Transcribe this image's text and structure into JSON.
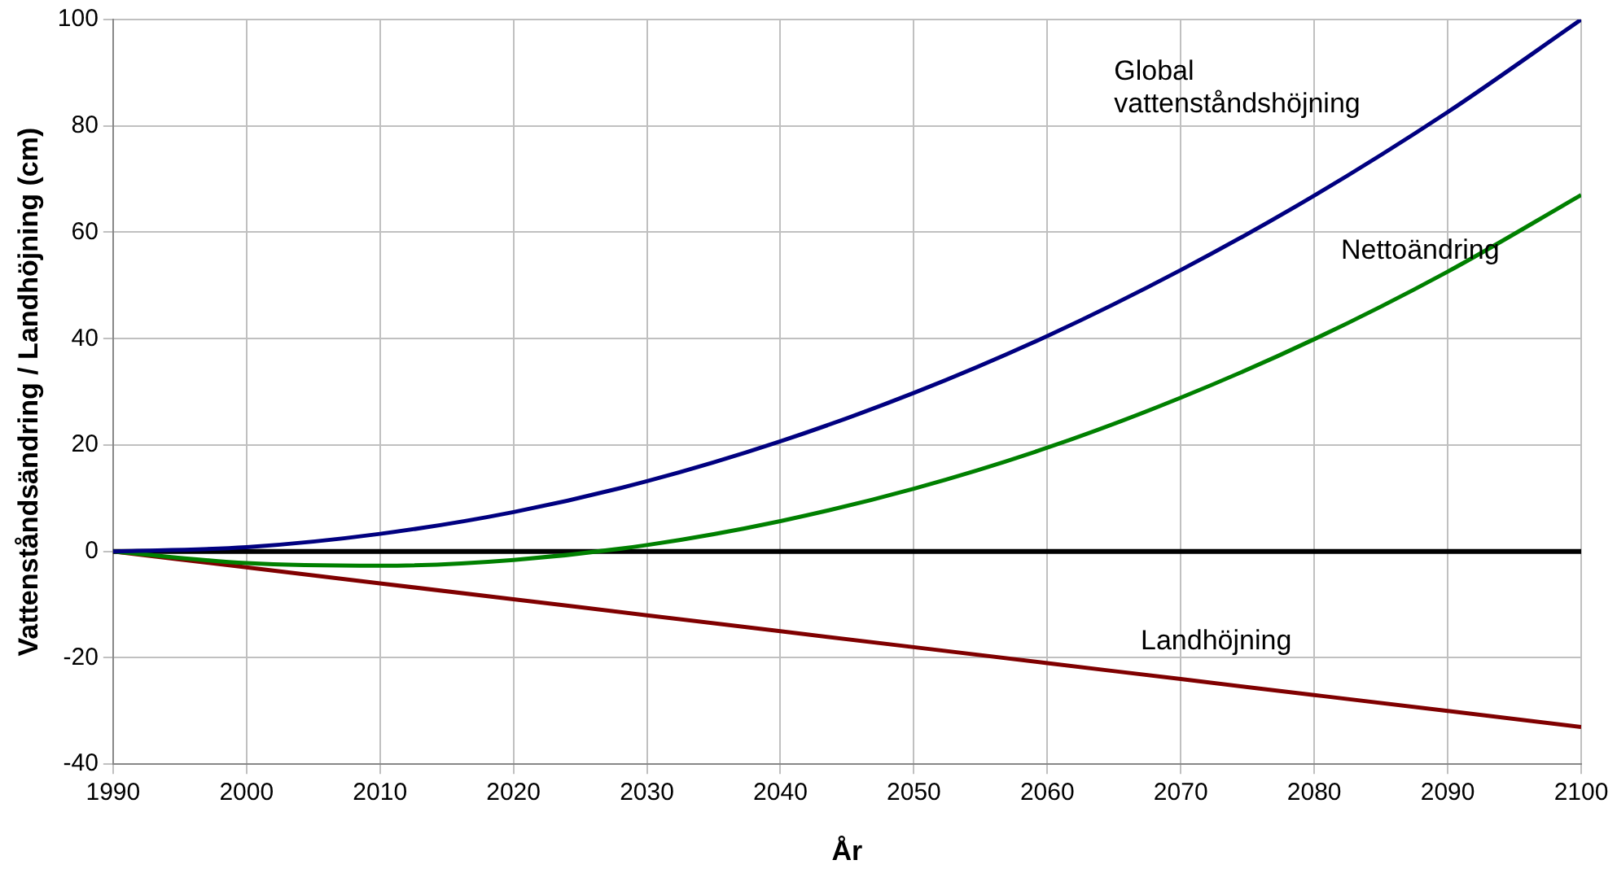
{
  "chart_data": {
    "type": "line",
    "xlabel": "År",
    "ylabel": "Vattenståndsändring / Landhöjning (cm)",
    "x": [
      1990,
      2000,
      2010,
      2020,
      2030,
      2040,
      2050,
      2060,
      2070,
      2080,
      2090,
      2100
    ],
    "series": [
      {
        "name": "Global vattenståndshöjning",
        "color": "#000080",
        "values": [
          0,
          0.8,
          3.3,
          7.4,
          13.2,
          20.7,
          29.8,
          40.5,
          52.9,
          66.9,
          82.6,
          100
        ]
      },
      {
        "name": "Nettoändring",
        "color": "#008000",
        "values": [
          0,
          -2.2,
          -2.7,
          -1.6,
          1.2,
          5.7,
          11.8,
          19.5,
          28.9,
          39.9,
          52.6,
          67
        ]
      },
      {
        "name": "Landhöjning",
        "color": "#800000",
        "values": [
          0,
          -3,
          -6,
          -9,
          -12,
          -15,
          -18,
          -21,
          -24,
          -27,
          -30,
          -33
        ]
      }
    ],
    "xlim": [
      1990,
      2100
    ],
    "xticks": [
      1990,
      2000,
      2010,
      2020,
      2030,
      2040,
      2050,
      2060,
      2070,
      2080,
      2090,
      2100
    ],
    "ylim": [
      -40,
      100
    ],
    "yticks": [
      -40,
      -20,
      0,
      20,
      40,
      60,
      80,
      100
    ],
    "ref_lines": [
      {
        "axis": "y",
        "value": 0,
        "color": "#000000"
      }
    ],
    "grid": true,
    "legend": false,
    "marker": "none",
    "line_style": "solid"
  }
}
